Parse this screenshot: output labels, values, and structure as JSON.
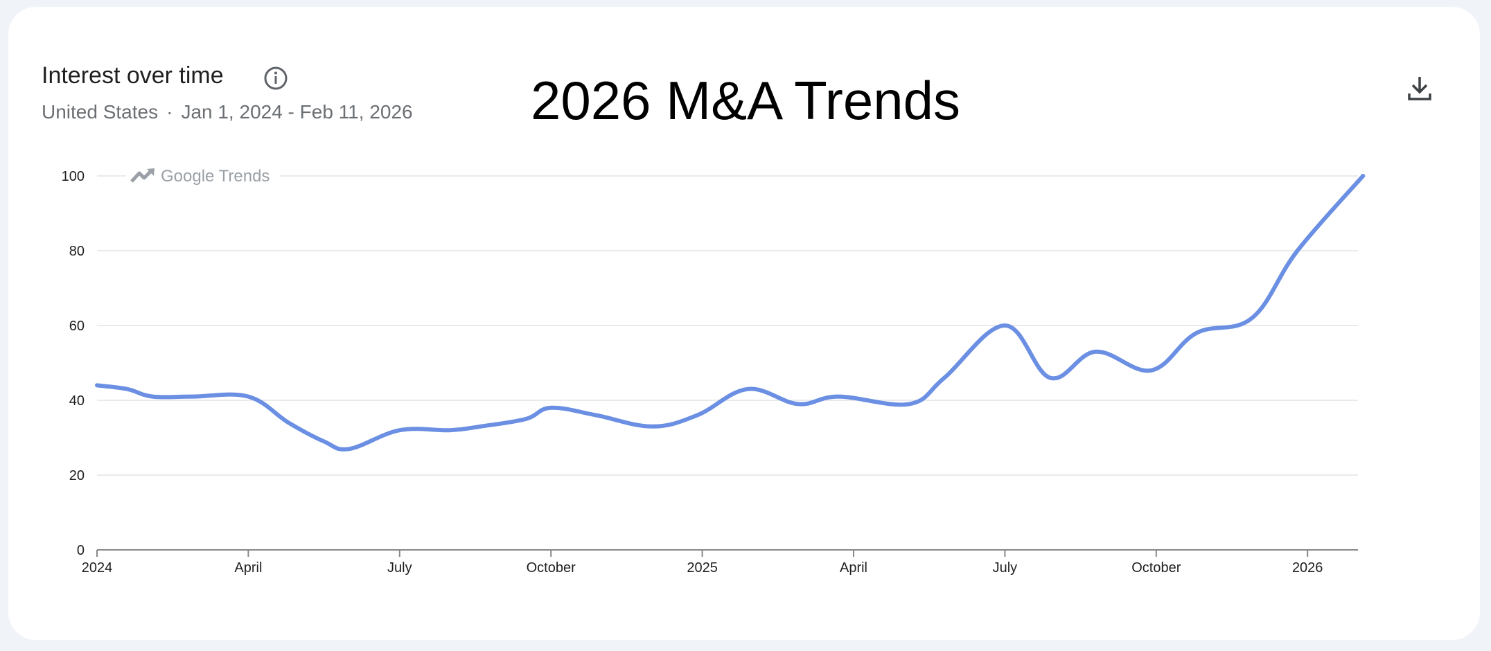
{
  "card": {
    "title": "Interest over time",
    "region": "United States",
    "separator": "·",
    "date_range": "Jan 1, 2024 - Feb 11, 2026"
  },
  "overlay_title": "2026 M&A Trends",
  "watermark": {
    "brand": "Google",
    "product": "Trends"
  },
  "colors": {
    "line": "#6b8fe3",
    "grid": "#e3e3e3",
    "axis": "#888888"
  },
  "chart_data": {
    "type": "line",
    "title": "Interest over time",
    "xlabel": "",
    "ylabel": "",
    "ylim": [
      0,
      100
    ],
    "yticks": [
      0,
      20,
      40,
      60,
      80,
      100
    ],
    "grid": true,
    "xticks": [
      {
        "label": "2024",
        "month": 0
      },
      {
        "label": "April",
        "month": 3
      },
      {
        "label": "July",
        "month": 6
      },
      {
        "label": "October",
        "month": 9
      },
      {
        "label": "2025",
        "month": 12
      },
      {
        "label": "April",
        "month": 15
      },
      {
        "label": "July",
        "month": 18
      },
      {
        "label": "October",
        "month": 21
      },
      {
        "label": "2026",
        "month": 24
      }
    ],
    "xlim": [
      0,
      25.1
    ],
    "series": [
      {
        "name": "M&A",
        "x": [
          0,
          0.6,
          1.1,
          1.9,
          3.0,
          3.8,
          4.5,
          5.0,
          6.0,
          7.0,
          7.6,
          8.5,
          9.0,
          9.9,
          11.0,
          11.9,
          12.9,
          13.9,
          14.7,
          16.1,
          16.8,
          18.0,
          18.9,
          19.8,
          20.9,
          21.8,
          22.9,
          23.8,
          25.1
        ],
        "values": [
          44,
          43,
          41,
          41,
          41,
          34,
          29,
          27,
          32,
          32,
          33,
          35,
          38,
          36,
          33,
          36,
          43,
          39,
          41,
          39,
          46,
          60,
          46,
          53,
          48,
          58,
          62,
          80,
          100
        ]
      }
    ]
  }
}
